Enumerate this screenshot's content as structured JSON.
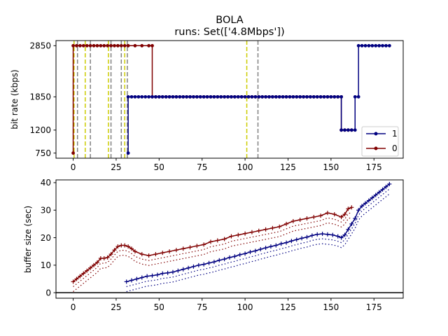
{
  "chart_data": {
    "title": "BOLA",
    "subtitle": "runs: Set(['4.8Mbps'])",
    "panels": [
      {
        "type": "line",
        "ylabel": "bit rate (kbps)",
        "xlim": [
          -10,
          192
        ],
        "ylim": [
          650,
          2950
        ],
        "xticks": [
          0,
          25,
          50,
          75,
          100,
          125,
          150,
          175
        ],
        "yticks": [
          750,
          1200,
          1850,
          2850
        ],
        "legend": "lower-right",
        "series": [
          {
            "name": "1",
            "color": "#000080",
            "x": [
              32,
              32,
              34,
              36,
              38,
              40,
              42,
              44,
              46,
              48,
              50,
              52,
              54,
              56,
              58,
              60,
              62,
              64,
              66,
              68,
              70,
              72,
              74,
              76,
              78,
              80,
              82,
              84,
              86,
              88,
              90,
              92,
              94,
              96,
              98,
              100,
              102,
              104,
              106,
              108,
              110,
              112,
              114,
              116,
              118,
              120,
              122,
              124,
              126,
              128,
              130,
              132,
              134,
              136,
              138,
              140,
              142,
              144,
              146,
              148,
              150,
              152,
              154,
              156,
              156,
              158,
              160,
              162,
              164,
              164,
              166,
              166,
              168,
              170,
              172,
              174,
              176,
              178,
              180,
              182,
              184
            ],
            "y": [
              750,
              1850,
              1850,
              1850,
              1850,
              1850,
              1850,
              1850,
              1850,
              1850,
              1850,
              1850,
              1850,
              1850,
              1850,
              1850,
              1850,
              1850,
              1850,
              1850,
              1850,
              1850,
              1850,
              1850,
              1850,
              1850,
              1850,
              1850,
              1850,
              1850,
              1850,
              1850,
              1850,
              1850,
              1850,
              1850,
              1850,
              1850,
              1850,
              1850,
              1850,
              1850,
              1850,
              1850,
              1850,
              1850,
              1850,
              1850,
              1850,
              1850,
              1850,
              1850,
              1850,
              1850,
              1850,
              1850,
              1850,
              1850,
              1850,
              1850,
              1850,
              1850,
              1850,
              1850,
              1200,
              1200,
              1200,
              1200,
              1200,
              1850,
              1850,
              2850,
              2850,
              2850,
              2850,
              2850,
              2850,
              2850,
              2850,
              2850,
              2850
            ]
          },
          {
            "name": "0",
            "color": "#800000",
            "x": [
              0,
              0,
              2,
              4,
              6,
              8,
              10,
              12,
              14,
              16,
              18,
              20,
              22,
              24,
              26,
              28,
              30,
              32,
              36,
              40,
              44,
              46,
              46,
              48,
              50,
              52,
              54,
              56,
              58,
              60,
              62,
              64,
              66,
              68,
              70,
              72,
              74,
              76,
              78,
              80,
              82,
              84,
              86,
              88,
              90,
              92,
              94,
              96,
              98,
              100,
              102,
              104,
              106,
              108,
              110,
              112,
              114,
              116,
              118,
              120,
              122,
              124,
              126,
              128,
              130,
              132,
              134,
              136,
              138,
              140,
              142,
              144,
              146,
              148,
              150,
              152,
              154,
              156,
              156,
              158,
              160,
              162
            ],
            "y": [
              750,
              2850,
              2850,
              2850,
              2850,
              2850,
              2850,
              2850,
              2850,
              2850,
              2850,
              2850,
              2850,
              2850,
              2850,
              2850,
              2850,
              2850,
              2850,
              2850,
              2850,
              2850,
              1850,
              1850,
              1850,
              1850,
              1850,
              1850,
              1850,
              1850,
              1850,
              1850,
              1850,
              1850,
              1850,
              1850,
              1850,
              1850,
              1850,
              1850,
              1850,
              1850,
              1850,
              1850,
              1850,
              1850,
              1850,
              1850,
              1850,
              1850,
              1850,
              1850,
              1850,
              1850,
              1850,
              1850,
              1850,
              1850,
              1850,
              1850,
              1850,
              1850,
              1850,
              1850,
              1850,
              1850,
              1850,
              1850,
              1850,
              1850,
              1850,
              1850,
              1850,
              1850,
              1850,
              1850,
              1850,
              1850,
              1200,
              1200,
              1200,
              1200
            ]
          }
        ],
        "vlines": [
          {
            "x": 0.5,
            "color": "#cccc00"
          },
          {
            "x": 2.5,
            "color": "#808080"
          },
          {
            "x": 7,
            "color": "#cccc00"
          },
          {
            "x": 10,
            "color": "#808080"
          },
          {
            "x": 20.5,
            "color": "#cccc00"
          },
          {
            "x": 22,
            "color": "#808080"
          },
          {
            "x": 28,
            "color": "#808080"
          },
          {
            "x": 30,
            "color": "#cccc00"
          },
          {
            "x": 31.5,
            "color": "#808080"
          },
          {
            "x": 101,
            "color": "#cccc00"
          },
          {
            "x": 107.5,
            "color": "#808080"
          }
        ]
      },
      {
        "type": "line",
        "ylabel": "buffer size (sec)",
        "xlim": [
          -10,
          192
        ],
        "ylim": [
          -2,
          41
        ],
        "xticks": [
          0,
          25,
          50,
          75,
          100,
          125,
          150,
          175
        ],
        "yticks": [
          0,
          10,
          20,
          30,
          40
        ],
        "hline": 0,
        "series": [
          {
            "name": "1",
            "color": "#000080",
            "x": [
              31,
              34,
              37,
              40,
              43,
              46,
              49,
              52,
              55,
              58,
              61,
              64,
              67,
              70,
              73,
              76,
              79,
              82,
              85,
              88,
              91,
              94,
              97,
              100,
              103,
              106,
              109,
              112,
              115,
              118,
              121,
              124,
              127,
              130,
              133,
              136,
              139,
              142,
              145,
              148,
              151,
              154,
              156,
              158,
              160,
              162,
              164,
              166,
              168,
              170,
              172,
              174,
              176,
              178,
              180,
              182,
              184
            ],
            "y": [
              4,
              4.5,
              5,
              5.5,
              6,
              6.2,
              6.5,
              7,
              7.2,
              7.5,
              8,
              8.5,
              9,
              9.5,
              10,
              10.3,
              10.8,
              11.2,
              11.8,
              12.2,
              12.8,
              13.2,
              13.8,
              14.2,
              14.8,
              15.2,
              15.8,
              16.3,
              16.8,
              17.2,
              17.8,
              18.2,
              18.8,
              19.3,
              19.8,
              20.2,
              20.8,
              21.2,
              21.4,
              21.2,
              21,
              20.5,
              20,
              21,
              23,
              25,
              27,
              30,
              31.5,
              32.5,
              33.5,
              34.5,
              35.5,
              36.5,
              37.5,
              38.5,
              39.5
            ]
          },
          {
            "name": "0",
            "color": "#800000",
            "x": [
              0,
              2,
              4,
              6,
              8,
              10,
              12,
              14,
              16,
              18,
              20,
              22,
              24,
              26,
              28,
              30,
              32,
              34,
              36,
              40,
              44,
              48,
              52,
              56,
              60,
              64,
              68,
              72,
              76,
              80,
              84,
              88,
              92,
              96,
              100,
              104,
              108,
              112,
              116,
              120,
              124,
              128,
              132,
              136,
              140,
              144,
              148,
              152,
              156,
              158,
              160,
              162
            ],
            "y": [
              4,
              5,
              6,
              7,
              8,
              9,
              10,
              11,
              12.5,
              12.5,
              12.8,
              14,
              15.5,
              16.8,
              17.2,
              17.2,
              16.8,
              16,
              15,
              14,
              13.5,
              14,
              14.5,
              15,
              15.5,
              16,
              16.5,
              17,
              17.5,
              18.5,
              19,
              19.5,
              20.5,
              21,
              21.5,
              22,
              22.5,
              23,
              23.5,
              24,
              25,
              26,
              26.5,
              27,
              27.5,
              28,
              29,
              28.5,
              27.5,
              28.5,
              30.5,
              31
            ]
          }
        ]
      }
    ]
  }
}
